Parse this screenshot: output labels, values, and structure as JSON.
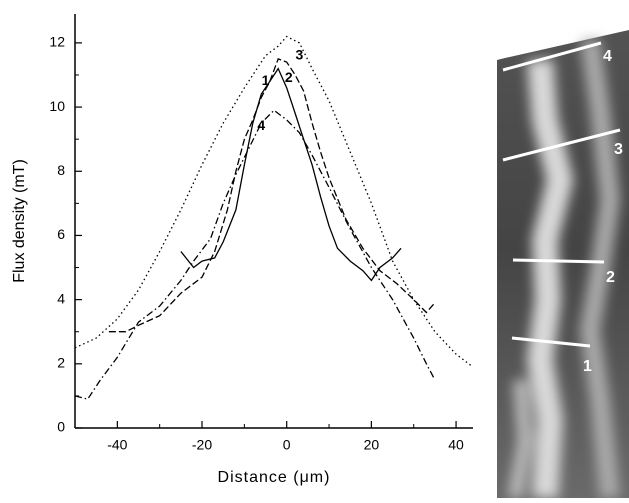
{
  "chart_data": {
    "type": "line",
    "xlabel": "Distance (μm)",
    "ylabel": "Flux density (mT)",
    "xlim": [
      -50,
      44
    ],
    "ylim": [
      0,
      12.9
    ],
    "xticks": [
      -40,
      -20,
      0,
      20,
      40
    ],
    "yticks": [
      0,
      2,
      4,
      6,
      8,
      10,
      12
    ],
    "series": [
      {
        "color": "#000000",
        "dash": "solid",
        "x": [
          -25,
          -22,
          -20,
          -17,
          -15,
          -12,
          -10,
          -8,
          -6,
          -4,
          -2,
          0,
          2,
          4,
          6,
          8,
          10,
          12,
          15,
          18,
          20,
          22,
          25,
          27
        ],
        "values": [
          5.5,
          5.0,
          5.2,
          5.3,
          5.8,
          6.8,
          8.2,
          9.5,
          10.4,
          10.8,
          11.2,
          10.6,
          9.8,
          9.0,
          8.2,
          7.2,
          6.3,
          5.6,
          5.2,
          4.9,
          4.6,
          5.0,
          5.3,
          5.6
        ]
      },
      {
        "color": "#000000",
        "dash": "dashed",
        "x": [
          -42,
          -38,
          -35,
          -30,
          -25,
          -20,
          -17,
          -14,
          -12,
          -10,
          -8,
          -6,
          -4,
          -2,
          0,
          2,
          4,
          6,
          8,
          10,
          14,
          18,
          22,
          26,
          30,
          33,
          35
        ],
        "values": [
          3.0,
          3.0,
          3.2,
          3.5,
          4.2,
          4.7,
          5.5,
          6.8,
          8.0,
          9.0,
          9.6,
          10.3,
          10.8,
          11.5,
          11.4,
          11.0,
          10.5,
          9.5,
          8.6,
          7.8,
          6.5,
          5.6,
          4.9,
          4.5,
          4.0,
          3.6,
          3.9
        ]
      },
      {
        "color": "#000000",
        "dash": "dotted",
        "x": [
          -50,
          -45,
          -40,
          -35,
          -30,
          -25,
          -20,
          -15,
          -10,
          -5,
          -2,
          0,
          3,
          6,
          10,
          15,
          20,
          25,
          30,
          35,
          40,
          44
        ],
        "values": [
          2.5,
          2.8,
          3.4,
          4.3,
          5.5,
          6.8,
          8.2,
          9.5,
          10.6,
          11.6,
          11.9,
          12.2,
          12.0,
          11.2,
          10.2,
          8.6,
          7.0,
          5.2,
          4.0,
          3.0,
          2.3,
          1.9
        ]
      },
      {
        "color": "#000000",
        "dash": "dashdot",
        "x": [
          -50,
          -47,
          -44,
          -40,
          -35,
          -30,
          -25,
          -22,
          -18,
          -15,
          -12,
          -9,
          -6,
          -3,
          0,
          3,
          6,
          10,
          15,
          20,
          25,
          30,
          33,
          35
        ],
        "values": [
          1.0,
          0.9,
          1.5,
          2.2,
          3.3,
          3.8,
          4.6,
          5.2,
          5.9,
          7.0,
          7.9,
          8.7,
          9.5,
          9.9,
          9.6,
          9.2,
          8.5,
          7.5,
          6.2,
          5.0,
          4.0,
          2.8,
          2.0,
          1.5
        ]
      }
    ],
    "annotations": [
      "1",
      "2",
      "3",
      "4"
    ]
  },
  "image": {
    "labels": [
      "1",
      "2",
      "3",
      "4"
    ]
  }
}
